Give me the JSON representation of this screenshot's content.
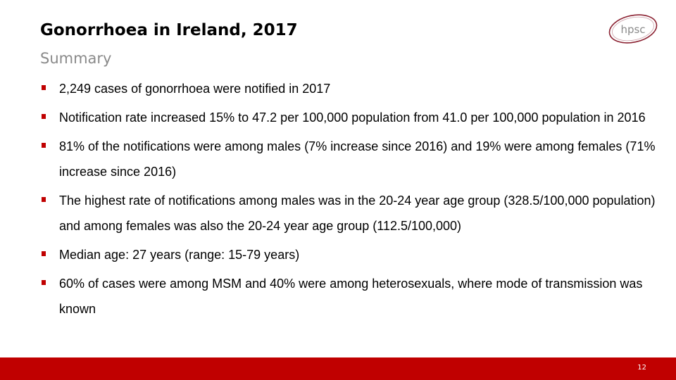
{
  "slide": {
    "title": "Gonorrhoea in Ireland, 2017",
    "subtitle": "Summary",
    "logo_text": "hpsc",
    "page_number": "12"
  },
  "bullets": [
    {
      "text": "2,249 cases of gonorrhoea were notified in 2017"
    },
    {
      "text": "Notification rate increased 15% to 47.2 per 100,000 population from 41.0 per 100,000 population in 2016"
    },
    {
      "text": "81% of the notifications were among males (7% increase since 2016) and 19% were among females (71% increase since 2016)"
    },
    {
      "text": "The highest rate of notifications among males was in the 20-24 year age group (328.5/100,000 population) and among females was also the 20-24 year age group (112.5/100,000)"
    },
    {
      "text": "Median age: 27 years (range: 15-79 years)"
    },
    {
      "text": "60% of cases were among MSM and 40% were among heterosexuals, where mode of transmission was known"
    }
  ],
  "colors": {
    "accent": "#c00000",
    "subtitle": "#8a8a8a",
    "logo_ring": "#8b2232"
  }
}
